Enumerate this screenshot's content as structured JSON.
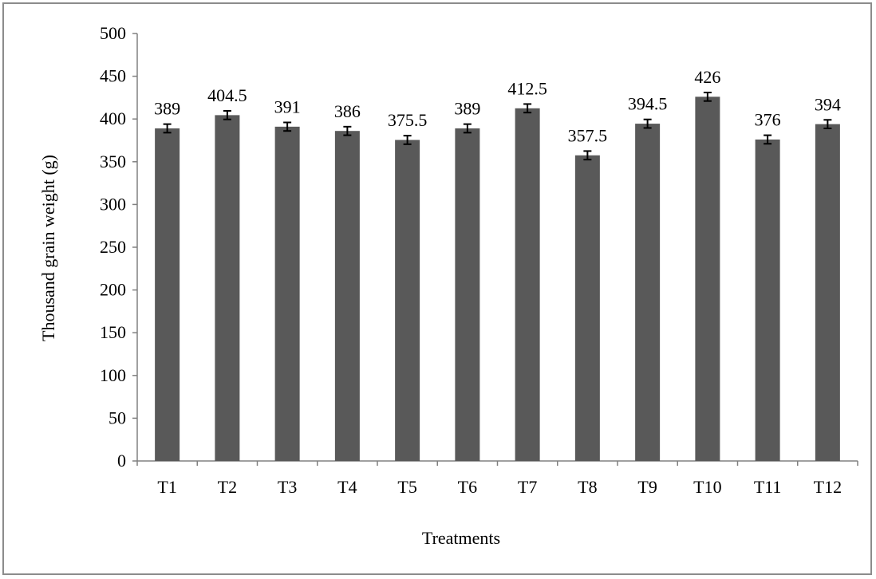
{
  "chart_data": {
    "type": "bar",
    "title": "",
    "xlabel": "Treatments",
    "ylabel": "Thousand grain weight (g)",
    "categories": [
      "T1",
      "T2",
      "T3",
      "T4",
      "T5",
      "T6",
      "T7",
      "T8",
      "T9",
      "T10",
      "T11",
      "T12"
    ],
    "values": [
      389,
      404.5,
      391,
      386,
      375.5,
      389,
      412.5,
      357.5,
      394.5,
      426,
      376,
      394
    ],
    "data_labels": [
      "389",
      "404.5",
      "391",
      "386",
      "375.5",
      "389",
      "412.5",
      "357.5",
      "394.5",
      "426",
      "376",
      "394"
    ],
    "error": 5,
    "ylim": [
      0,
      500
    ],
    "yticks": [
      0,
      50,
      100,
      150,
      200,
      250,
      300,
      350,
      400,
      450,
      500
    ],
    "ytick_labels": [
      "0",
      "50",
      "100",
      "150",
      "200",
      "250",
      "300",
      "350",
      "400",
      "450",
      "500"
    ],
    "grid": false,
    "legend": "none",
    "bar_color": "#595959"
  }
}
